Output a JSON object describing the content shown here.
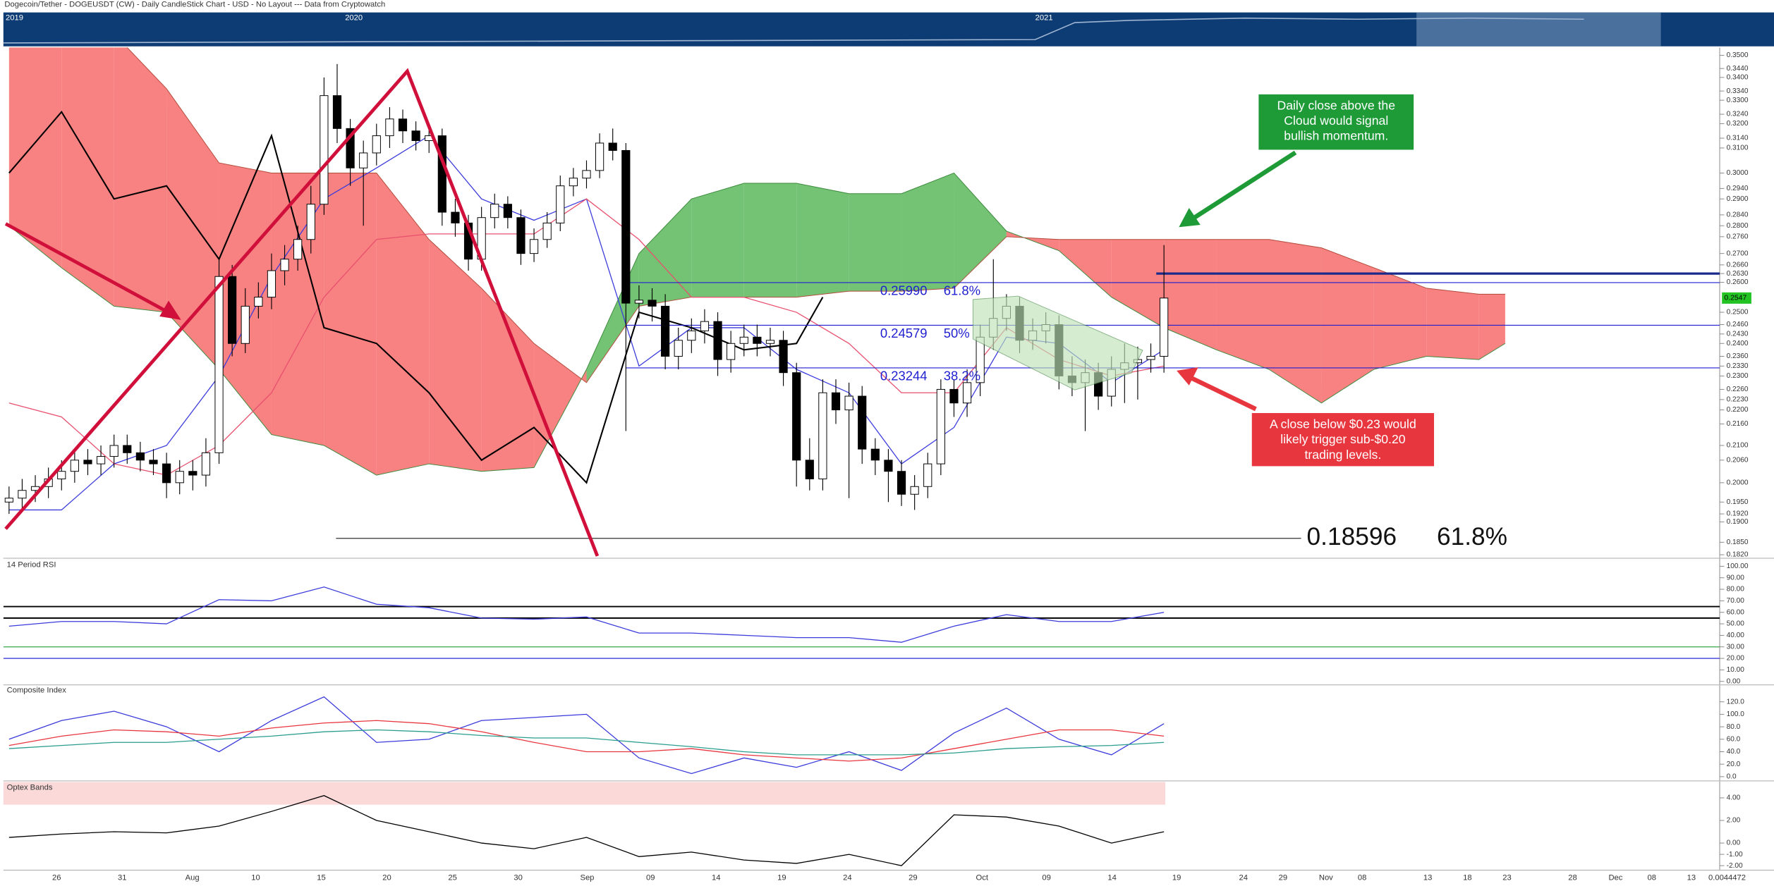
{
  "header": {
    "title": "Dogecoin/Tether - DOGEUSDT (CW) - Daily CandleStick Chart - USD - No Layout --- Data from Cryptowatch"
  },
  "navigator": {
    "labels": [
      "2019",
      "2020",
      "2021"
    ]
  },
  "footer_readout": "0.0044472",
  "chart_data": [
    {
      "type": "candlestick",
      "log_scale": true,
      "ylim": [
        0.1817,
        0.3536
      ],
      "yticks": [
        {
          "value": 0.35,
          "label": "0.3500"
        },
        {
          "value": 0.344,
          "label": "0.3440"
        },
        {
          "value": 0.34,
          "label": "0.3400"
        },
        {
          "value": 0.334,
          "label": "0.3340"
        },
        {
          "value": 0.33,
          "label": "0.3300"
        },
        {
          "value": 0.324,
          "label": "0.3240"
        },
        {
          "value": 0.32,
          "label": "0.3200"
        },
        {
          "value": 0.314,
          "label": "0.3140"
        },
        {
          "value": 0.31,
          "label": "0.3100"
        },
        {
          "value": 0.3,
          "label": "0.3000"
        },
        {
          "value": 0.294,
          "label": "0.2940"
        },
        {
          "value": 0.29,
          "label": "0.2900"
        },
        {
          "value": 0.284,
          "label": "0.2840"
        },
        {
          "value": 0.28,
          "label": "0.2800"
        },
        {
          "value": 0.276,
          "label": "0.2760"
        },
        {
          "value": 0.27,
          "label": "0.2700"
        },
        {
          "value": 0.266,
          "label": "0.2660"
        },
        {
          "value": 0.263,
          "label": "0.2630"
        },
        {
          "value": 0.26,
          "label": "0.2600"
        },
        {
          "value": 0.25,
          "label": "0.2500"
        },
        {
          "value": 0.246,
          "label": "0.2460"
        },
        {
          "value": 0.243,
          "label": "0.2430"
        },
        {
          "value": 0.24,
          "label": "0.2400"
        },
        {
          "value": 0.236,
          "label": "0.2360"
        },
        {
          "value": 0.233,
          "label": "0.2330"
        },
        {
          "value": 0.23,
          "label": "0.2300"
        },
        {
          "value": 0.226,
          "label": "0.2260"
        },
        {
          "value": 0.223,
          "label": "0.2230"
        },
        {
          "value": 0.22,
          "label": "0.2200"
        },
        {
          "value": 0.216,
          "label": "0.2160"
        },
        {
          "value": 0.21,
          "label": "0.2100"
        },
        {
          "value": 0.206,
          "label": "0.2060"
        },
        {
          "value": 0.2,
          "label": "0.2000"
        },
        {
          "value": 0.195,
          "label": "0.1950"
        },
        {
          "value": 0.192,
          "label": "0.1920"
        },
        {
          "value": 0.19,
          "label": "0.1900"
        },
        {
          "value": 0.185,
          "label": "0.1850"
        },
        {
          "value": 0.182,
          "label": "0.1820"
        }
      ],
      "x_labels": [
        "26",
        "31",
        "Aug",
        "10",
        "15",
        "20",
        "25",
        "30",
        "Sep",
        "09",
        "14",
        "19",
        "24",
        "29",
        "Oct",
        "09",
        "14",
        "19",
        "24",
        "29",
        "Nov",
        "08",
        "13",
        "18",
        "23",
        "28",
        "Dec",
        "08",
        "13"
      ],
      "open": [
        0.195,
        0.196,
        0.198,
        0.199,
        0.201,
        0.203,
        0.206,
        0.205,
        0.207,
        0.21,
        0.208,
        0.206,
        0.205,
        0.2,
        0.203,
        0.202,
        0.208,
        0.262,
        0.24,
        0.252,
        0.255,
        0.264,
        0.268,
        0.275,
        0.288,
        0.332,
        0.318,
        0.302,
        0.308,
        0.315,
        0.322,
        0.317,
        0.313,
        0.315,
        0.285,
        0.281,
        0.268,
        0.283,
        0.288,
        0.283,
        0.27,
        0.275,
        0.281,
        0.295,
        0.298,
        0.301,
        0.312,
        0.309,
        0.253,
        0.254,
        0.252,
        0.236,
        0.241,
        0.244,
        0.247,
        0.235,
        0.24,
        0.242,
        0.24,
        0.241,
        0.231,
        0.206,
        0.201,
        0.225,
        0.22,
        0.224,
        0.209,
        0.206,
        0.203,
        0.197,
        0.199,
        0.205,
        0.226,
        0.222,
        0.228,
        0.242,
        0.248,
        0.252,
        0.241,
        0.244,
        0.246,
        0.23,
        0.228,
        0.231,
        0.224,
        0.232,
        0.234,
        0.235,
        0.236
      ],
      "high": [
        0.199,
        0.201,
        0.202,
        0.204,
        0.206,
        0.209,
        0.209,
        0.21,
        0.213,
        0.213,
        0.211,
        0.209,
        0.208,
        0.206,
        0.206,
        0.212,
        0.268,
        0.266,
        0.258,
        0.26,
        0.27,
        0.273,
        0.28,
        0.295,
        0.34,
        0.346,
        0.322,
        0.313,
        0.32,
        0.327,
        0.326,
        0.321,
        0.319,
        0.318,
        0.29,
        0.284,
        0.287,
        0.292,
        0.291,
        0.286,
        0.279,
        0.285,
        0.299,
        0.302,
        0.305,
        0.316,
        0.318,
        0.312,
        0.259,
        0.258,
        0.256,
        0.245,
        0.248,
        0.251,
        0.25,
        0.244,
        0.246,
        0.246,
        0.245,
        0.244,
        0.234,
        0.212,
        0.229,
        0.229,
        0.228,
        0.227,
        0.212,
        0.209,
        0.206,
        0.202,
        0.208,
        0.229,
        0.229,
        0.232,
        0.246,
        0.268,
        0.256,
        0.255,
        0.248,
        0.25,
        0.249,
        0.236,
        0.235,
        0.234,
        0.236,
        0.24,
        0.239,
        0.24,
        0.273
      ],
      "low": [
        0.192,
        0.193,
        0.195,
        0.196,
        0.198,
        0.2,
        0.202,
        0.202,
        0.204,
        0.205,
        0.203,
        0.202,
        0.196,
        0.197,
        0.198,
        0.199,
        0.205,
        0.236,
        0.237,
        0.248,
        0.251,
        0.259,
        0.264,
        0.27,
        0.284,
        0.312,
        0.295,
        0.28,
        0.303,
        0.31,
        0.312,
        0.309,
        0.308,
        0.28,
        0.276,
        0.264,
        0.264,
        0.279,
        0.279,
        0.266,
        0.267,
        0.272,
        0.278,
        0.291,
        0.294,
        0.298,
        0.305,
        0.214,
        0.248,
        0.247,
        0.232,
        0.232,
        0.237,
        0.24,
        0.23,
        0.231,
        0.236,
        0.236,
        0.236,
        0.227,
        0.199,
        0.198,
        0.198,
        0.216,
        0.196,
        0.205,
        0.202,
        0.195,
        0.194,
        0.193,
        0.196,
        0.202,
        0.218,
        0.218,
        0.224,
        0.238,
        0.244,
        0.237,
        0.238,
        0.24,
        0.226,
        0.224,
        0.214,
        0.22,
        0.221,
        0.222,
        0.223,
        0.231,
        0.231
      ],
      "close": [
        0.196,
        0.198,
        0.199,
        0.201,
        0.203,
        0.206,
        0.205,
        0.207,
        0.21,
        0.208,
        0.206,
        0.205,
        0.2,
        0.203,
        0.202,
        0.208,
        0.262,
        0.24,
        0.252,
        0.255,
        0.264,
        0.268,
        0.275,
        0.288,
        0.332,
        0.318,
        0.302,
        0.308,
        0.315,
        0.322,
        0.317,
        0.313,
        0.315,
        0.285,
        0.281,
        0.268,
        0.283,
        0.288,
        0.283,
        0.27,
        0.275,
        0.281,
        0.295,
        0.298,
        0.301,
        0.312,
        0.309,
        0.253,
        0.254,
        0.252,
        0.236,
        0.241,
        0.244,
        0.247,
        0.235,
        0.24,
        0.242,
        0.24,
        0.241,
        0.231,
        0.206,
        0.201,
        0.225,
        0.22,
        0.224,
        0.209,
        0.206,
        0.203,
        0.197,
        0.199,
        0.205,
        0.226,
        0.222,
        0.228,
        0.242,
        0.248,
        0.252,
        0.241,
        0.244,
        0.246,
        0.23,
        0.228,
        0.231,
        0.224,
        0.232,
        0.234,
        0.235,
        0.236,
        0.2547
      ],
      "up_color": "#ffffff",
      "down_color": "#000000",
      "last_price_color": "#22c322",
      "cloud": {
        "x": [
          0,
          4,
          8,
          12,
          16,
          20,
          24,
          28,
          32,
          36,
          40,
          44,
          48,
          52,
          56,
          60,
          64,
          68,
          72,
          76,
          80,
          84,
          88,
          92,
          96,
          100,
          104,
          108,
          112,
          114
        ],
        "span_a": [
          0.28,
          0.265,
          0.252,
          0.25,
          0.232,
          0.213,
          0.21,
          0.202,
          0.205,
          0.203,
          0.204,
          0.232,
          0.27,
          0.29,
          0.296,
          0.296,
          0.292,
          0.292,
          0.3,
          0.278,
          0.271,
          0.255,
          0.245,
          0.238,
          0.232,
          0.222,
          0.232,
          0.236,
          0.235,
          0.24
        ],
        "span_b": [
          0.36,
          0.36,
          0.36,
          0.335,
          0.304,
          0.3,
          0.3,
          0.3,
          0.275,
          0.258,
          0.24,
          0.228,
          0.252,
          0.255,
          0.255,
          0.255,
          0.257,
          0.257,
          0.258,
          0.276,
          0.275,
          0.275,
          0.275,
          0.275,
          0.275,
          0.272,
          0.265,
          0.258,
          0.256,
          0.256
        ],
        "bull_color": "#5cb85c",
        "bear_color": "#f76b6b"
      },
      "lines": [
        {
          "x": [
            0,
            4,
            8,
            12,
            16,
            20,
            24,
            28,
            32,
            36,
            40,
            44,
            48,
            52,
            56,
            60,
            64,
            68,
            72,
            76,
            80,
            84,
            88
          ],
          "values": [
            0.193,
            0.193,
            0.205,
            0.21,
            0.23,
            0.262,
            0.29,
            0.302,
            0.315,
            0.29,
            0.282,
            0.29,
            0.233,
            0.245,
            0.245,
            0.232,
            0.225,
            0.205,
            0.215,
            0.242,
            0.24,
            0.228,
            0.238
          ],
          "color": "#3b3bdc"
        },
        {
          "x": [
            0,
            4,
            8,
            12,
            16,
            20,
            24,
            28,
            32,
            36,
            40,
            44,
            48,
            52,
            56,
            60,
            64,
            68,
            72,
            76,
            80,
            84,
            88
          ],
          "values": [
            0.222,
            0.218,
            0.205,
            0.202,
            0.21,
            0.225,
            0.255,
            0.275,
            0.277,
            0.277,
            0.277,
            0.29,
            0.275,
            0.255,
            0.255,
            0.25,
            0.24,
            0.225,
            0.225,
            0.245,
            0.235,
            0.23,
            0.233
          ],
          "color": "#e8506e"
        },
        {
          "x": [
            0,
            4,
            8,
            12,
            16,
            20,
            24,
            28,
            32,
            36,
            40,
            44,
            48,
            52,
            56,
            60,
            62
          ],
          "values": [
            0.3,
            0.325,
            0.29,
            0.295,
            0.268,
            0.315,
            0.245,
            0.24,
            0.225,
            0.206,
            0.215,
            0.2,
            0.25,
            0.245,
            0.238,
            0.24,
            0.255
          ],
          "color": "#000000"
        }
      ],
      "fib_levels": [
        {
          "price": {
            "value": 0.2599,
            "label": "0.25990"
          },
          "ratio": "61.8%"
        },
        {
          "price": 0.24579,
          "ratio": "50%"
        },
        {
          "price": 0.23244,
          "ratio": "38.2%"
        }
      ],
      "fib_color": "#1f1fd0",
      "extension_level": {
        "price": 0.18596,
        "ratio": "61.8%"
      },
      "resistance": 0.263,
      "annotations": [
        {
          "lines": [
            "Daily close above the",
            "Cloud would signal",
            "bullish momentum."
          ],
          "color": "#1e9a37"
        },
        {
          "lines": [
            "A close below $0.23 would",
            "likely trigger sub-$0.20",
            "trading levels."
          ],
          "color": "#e8363f"
        }
      ]
    },
    {
      "type": "line",
      "title": "14 Period RSI",
      "ylim": [
        -2,
        104
      ],
      "yticks": [
        {
          "value": 100,
          "label": "100.00"
        },
        {
          "value": 90,
          "label": "90.00"
        },
        {
          "value": 80,
          "label": "80.00"
        },
        {
          "value": 70,
          "label": "70.00"
        },
        {
          "value": 60,
          "label": "60.00"
        },
        {
          "value": 50,
          "label": "50.00"
        },
        {
          "value": 40,
          "label": "40.00"
        },
        {
          "value": 30,
          "label": "30.00"
        },
        {
          "value": 20,
          "label": "20.00"
        },
        {
          "value": 10,
          "label": "10.00"
        },
        {
          "value": 0,
          "label": "0.00"
        }
      ],
      "levels": [
        {
          "value": 65,
          "color": "#000000"
        },
        {
          "value": 55,
          "color": "#000000"
        },
        {
          "value": 30,
          "color": "#3aa54a"
        },
        {
          "value": 20,
          "color": "#3b3bdc"
        }
      ],
      "x": [
        0,
        4,
        8,
        12,
        16,
        20,
        24,
        28,
        32,
        36,
        40,
        44,
        48,
        52,
        56,
        60,
        64,
        68,
        72,
        76,
        80,
        84,
        88
      ],
      "series": [
        {
          "color": "#3b3bdc",
          "values": [
            48,
            52,
            52,
            50,
            71,
            70,
            82,
            67,
            64,
            55,
            54,
            56,
            42,
            42,
            40,
            38,
            38,
            34,
            48,
            58,
            52,
            52,
            60
          ]
        }
      ]
    },
    {
      "type": "line",
      "title": "Composite Index",
      "ylim": [
        -5,
        140
      ],
      "yticks": [
        {
          "value": 120,
          "label": "120.0"
        },
        {
          "value": 100,
          "label": "100.0"
        },
        {
          "value": 80,
          "label": "80.0"
        },
        {
          "value": 60,
          "label": "60.0"
        },
        {
          "value": 40,
          "label": "40.0"
        },
        {
          "value": 20,
          "label": "20.0"
        },
        {
          "value": 0,
          "label": "0.0"
        }
      ],
      "levels": [],
      "x": [
        0,
        4,
        8,
        12,
        16,
        20,
        24,
        28,
        32,
        36,
        40,
        44,
        48,
        52,
        56,
        60,
        64,
        68,
        72,
        76,
        80,
        84,
        88
      ],
      "series": [
        {
          "color": "#3b3bdc",
          "values": [
            60,
            90,
            105,
            80,
            40,
            90,
            128,
            55,
            60,
            90,
            95,
            100,
            30,
            5,
            30,
            15,
            40,
            10,
            70,
            110,
            60,
            35,
            85
          ]
        },
        {
          "color": "#e8363f",
          "values": [
            50,
            65,
            75,
            72,
            65,
            78,
            86,
            90,
            85,
            72,
            55,
            40,
            40,
            45,
            35,
            30,
            25,
            30,
            45,
            60,
            75,
            75,
            65
          ]
        },
        {
          "color": "#2a9d8f",
          "values": [
            45,
            50,
            55,
            55,
            60,
            65,
            72,
            75,
            72,
            66,
            62,
            62,
            55,
            48,
            40,
            35,
            35,
            35,
            38,
            45,
            48,
            50,
            55
          ]
        }
      ]
    },
    {
      "type": "line",
      "title": "Optex Bands",
      "ylim": [
        -2.4,
        5.3
      ],
      "yticks": [
        {
          "value": 4,
          "label": "4.00"
        },
        {
          "value": 2,
          "label": "2.00"
        },
        {
          "value": 0,
          "label": "0.00"
        },
        {
          "value": -1,
          "label": "-1.00"
        },
        {
          "value": -2,
          "label": "-2.00"
        }
      ],
      "levels": [],
      "x": [
        0,
        4,
        8,
        12,
        16,
        20,
        24,
        28,
        32,
        36,
        40,
        44,
        48,
        52,
        56,
        60,
        64,
        68,
        72,
        76,
        80,
        84,
        88
      ],
      "series": [
        {
          "color": "#000000",
          "values": [
            0.5,
            0.8,
            1,
            0.9,
            1.5,
            2.8,
            4.2,
            2,
            1,
            0,
            -0.5,
            0.5,
            -1.2,
            -0.8,
            -1.5,
            -1.8,
            -1,
            -2,
            2.5,
            2.3,
            1.5,
            0,
            1
          ]
        }
      ]
    }
  ]
}
